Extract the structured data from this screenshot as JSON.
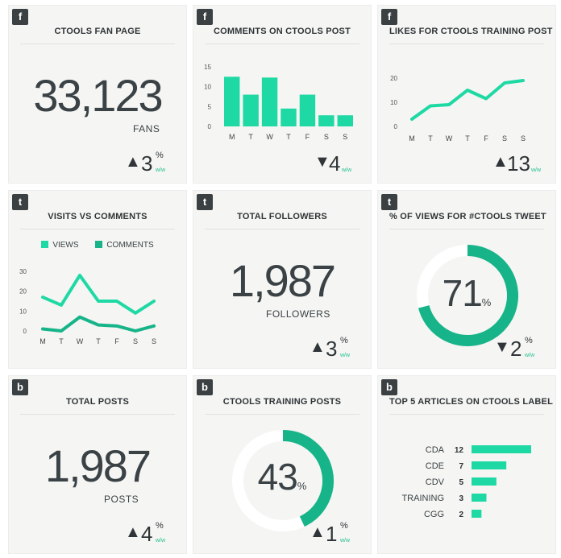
{
  "accent": "#1fd9a4",
  "accent_dark": "#16b488",
  "cards": {
    "fan_page": {
      "badge": "f",
      "title": "CTOOLS FAN PAGE",
      "value": "33,123",
      "unit": "FANS",
      "delta": {
        "direction": "up",
        "arrow": "▲",
        "value": "3",
        "pct": "%",
        "ww": "w/w"
      }
    },
    "comments_post": {
      "badge": "f",
      "title": "COMMENTS ON CTOOLS POST",
      "delta": {
        "direction": "down",
        "arrow": "▼",
        "value": "4",
        "pct": "",
        "ww": "w/w"
      }
    },
    "likes_training": {
      "badge": "f",
      "title": "LIKES FOR CTOOLS TRAINING POST",
      "delta": {
        "direction": "up",
        "arrow": "▲",
        "value": "13",
        "pct": "",
        "ww": "w/w"
      }
    },
    "visits_comments": {
      "badge": "t",
      "title": "VISITS VS COMMENTS",
      "legend": [
        "VIEWS",
        "COMMENTS"
      ]
    },
    "followers": {
      "badge": "t",
      "title": "TOTAL FOLLOWERS",
      "value": "1,987",
      "unit": "FOLLOWERS",
      "delta": {
        "direction": "up",
        "arrow": "▲",
        "value": "3",
        "pct": "%",
        "ww": "w/w"
      }
    },
    "views_tweet": {
      "badge": "t",
      "title": "% OF VIEWS FOR #CTOOLS TWEET",
      "percent_value": 71,
      "value": "71",
      "pct": "%",
      "delta": {
        "direction": "down",
        "arrow": "▼",
        "value": "2",
        "pct": "%",
        "ww": "w/w"
      }
    },
    "total_posts": {
      "badge": "b",
      "title": "TOTAL POSTS",
      "value": "1,987",
      "unit": "POSTS",
      "delta": {
        "direction": "up",
        "arrow": "▲",
        "value": "4",
        "pct": "%",
        "ww": "w/w"
      }
    },
    "training_posts": {
      "badge": "b",
      "title": "CTOOLS TRAINING POSTS",
      "percent_value": 43,
      "value": "43",
      "pct": "%",
      "delta": {
        "direction": "up",
        "arrow": "▲",
        "value": "1",
        "pct": "%",
        "ww": "w/w"
      }
    },
    "top_articles": {
      "badge": "b",
      "title": "TOP 5 ARTICLES ON CTOOLS LABEL"
    }
  },
  "chart_data": [
    {
      "type": "bar",
      "categories": [
        "M",
        "T",
        "W",
        "T",
        "F",
        "S",
        "S"
      ],
      "values": [
        12.5,
        8,
        12.3,
        4.5,
        8,
        2.8,
        2.8
      ],
      "ylim": [
        0,
        15
      ],
      "yticks": [
        0,
        5,
        10,
        15
      ],
      "grid": false
    },
    {
      "type": "line",
      "categories": [
        "M",
        "T",
        "W",
        "T",
        "F",
        "S",
        "S"
      ],
      "values": [
        3,
        8.5,
        9,
        15,
        11.5,
        18,
        19
      ],
      "ylim": [
        0,
        20
      ],
      "yticks": [
        0,
        10,
        20
      ],
      "grid": false
    },
    {
      "type": "line",
      "categories": [
        "M",
        "T",
        "W",
        "T",
        "F",
        "S",
        "S"
      ],
      "ylim": [
        0,
        30
      ],
      "yticks": [
        0,
        10,
        20,
        30
      ],
      "series": [
        {
          "name": "VIEWS",
          "values": [
            17,
            13,
            28,
            15,
            15,
            9,
            15
          ]
        },
        {
          "name": "COMMENTS",
          "values": [
            1,
            0,
            7,
            3,
            2.5,
            0,
            2.5
          ]
        }
      ],
      "legend": "top",
      "grid": false
    },
    {
      "type": "bar",
      "orientation": "horizontal",
      "categories": [
        "CDA",
        "CDE",
        "CDV",
        "TRAINING",
        "CGG"
      ],
      "values": [
        12,
        7,
        5,
        3,
        2
      ]
    }
  ]
}
